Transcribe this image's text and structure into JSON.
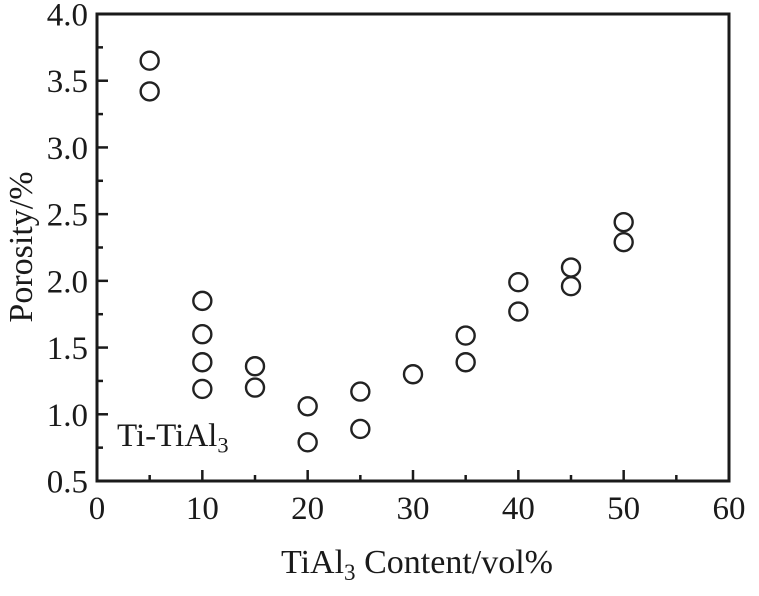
{
  "chart_data": {
    "type": "scatter",
    "ylabel": "Porosity/%",
    "xlabel": {
      "pre": "TiAl",
      "sub": "3",
      "post": " Content/vol%"
    },
    "annotation": {
      "pre": "Ti-TiAl",
      "sub": "3"
    },
    "xlim": [
      0,
      60
    ],
    "ylim": [
      0.5,
      4.0
    ],
    "x_major_ticks": [
      0,
      10,
      20,
      30,
      40,
      50,
      60
    ],
    "x_tick_labels": [
      "0",
      "10",
      "20",
      "30",
      "40",
      "50",
      "60"
    ],
    "x_minor_ticks": [
      5,
      15,
      25,
      35,
      45,
      55
    ],
    "y_major_ticks": [
      0.5,
      1.0,
      1.5,
      2.0,
      2.5,
      3.0,
      3.5,
      4.0
    ],
    "y_tick_labels": [
      "0.5",
      "1.0",
      "1.5",
      "2.0",
      "2.5",
      "3.0",
      "3.5",
      "4.0"
    ],
    "y_minor_ticks": [
      0.75,
      1.25,
      1.75,
      2.25,
      2.75,
      3.25,
      3.75
    ],
    "grid": false,
    "legend": null,
    "marker": {
      "shape": "open-circle",
      "radius": 9,
      "stroke_width": 2.4
    },
    "colors": {
      "axis": "#1a1a1a",
      "marker": "#222222",
      "background": "#ffffff",
      "text": "#1a1a1a"
    },
    "points": [
      {
        "x": 5,
        "y": 3.65
      },
      {
        "x": 5,
        "y": 3.42
      },
      {
        "x": 10,
        "y": 1.85
      },
      {
        "x": 10,
        "y": 1.6
      },
      {
        "x": 10,
        "y": 1.39
      },
      {
        "x": 10,
        "y": 1.19
      },
      {
        "x": 15,
        "y": 1.36
      },
      {
        "x": 15,
        "y": 1.2
      },
      {
        "x": 20,
        "y": 1.06
      },
      {
        "x": 20,
        "y": 0.79
      },
      {
        "x": 25,
        "y": 1.17
      },
      {
        "x": 25,
        "y": 0.89
      },
      {
        "x": 30,
        "y": 1.3
      },
      {
        "x": 35,
        "y": 1.59
      },
      {
        "x": 35,
        "y": 1.39
      },
      {
        "x": 40,
        "y": 1.99
      },
      {
        "x": 40,
        "y": 1.77
      },
      {
        "x": 45,
        "y": 2.1
      },
      {
        "x": 45,
        "y": 1.96
      },
      {
        "x": 50,
        "y": 2.44
      },
      {
        "x": 50,
        "y": 2.29
      }
    ]
  }
}
